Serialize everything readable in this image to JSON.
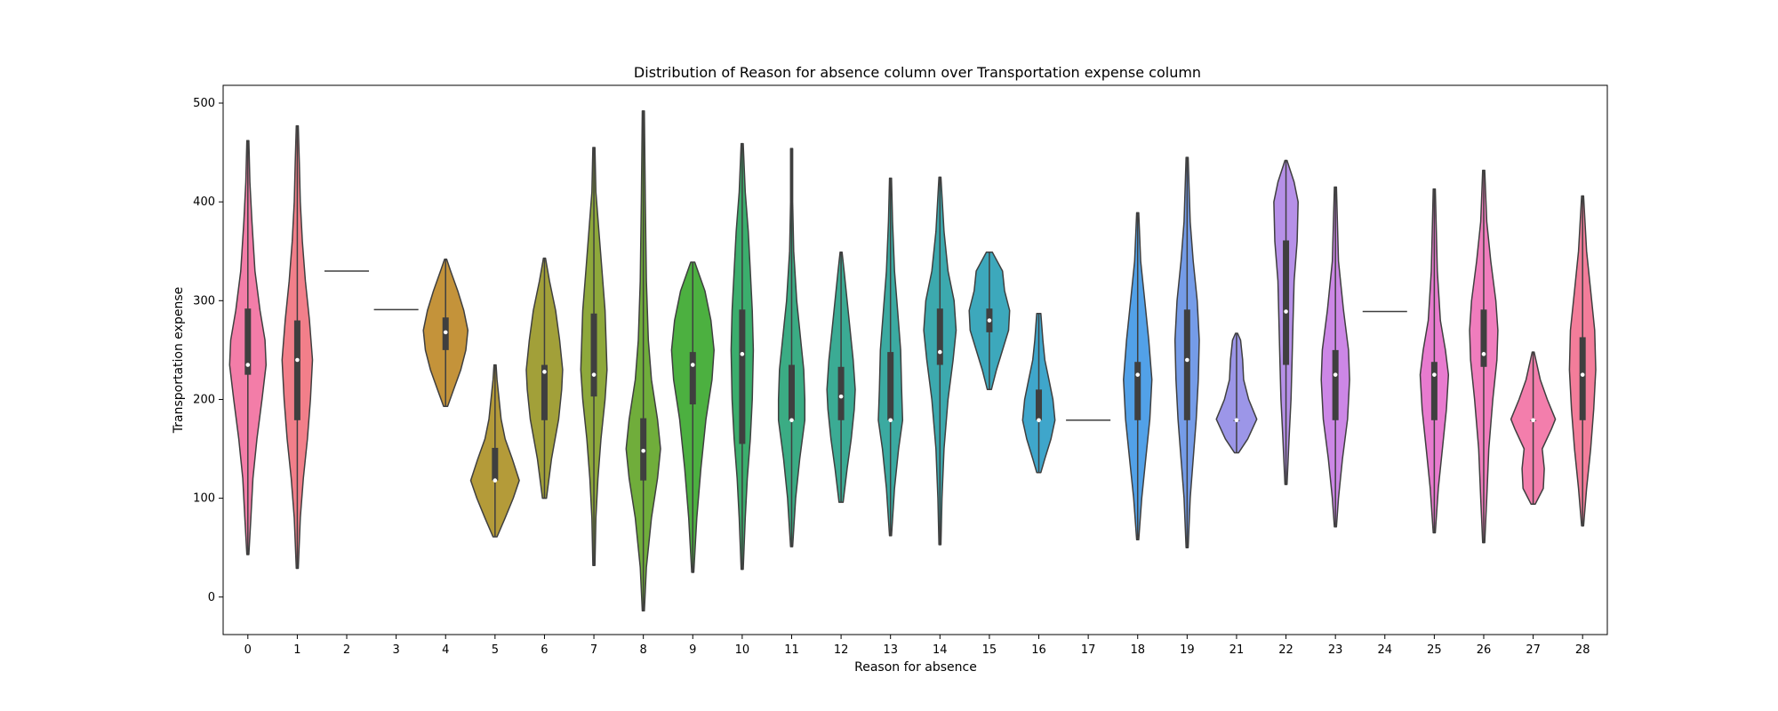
{
  "chart_data": {
    "type": "violin",
    "title": "Distribution of Reason for absence column over Transportation expense column",
    "xlabel": "Reason for absence",
    "ylabel": "Transportation expense",
    "ylim": [
      -38,
      518
    ],
    "yticks": [
      0,
      100,
      200,
      300,
      400,
      500
    ],
    "grid": false,
    "legend": "none",
    "categories": [
      "0",
      "1",
      "2",
      "3",
      "4",
      "5",
      "6",
      "7",
      "8",
      "9",
      "10",
      "11",
      "12",
      "13",
      "14",
      "15",
      "16",
      "17",
      "18",
      "19",
      "21",
      "22",
      "23",
      "24",
      "25",
      "26",
      "27",
      "28"
    ],
    "colors": [
      "#f37da8",
      "#f27f8a",
      "#e9805e",
      "#d88a3b",
      "#c4933a",
      "#b49b39",
      "#a2a039",
      "#8ea83b",
      "#70ad3b",
      "#4cb040",
      "#3bae6d",
      "#3bac84",
      "#3bab94",
      "#3baaa1",
      "#3ca9ae",
      "#3da8bc",
      "#3fa6cb",
      "#44a2db",
      "#52a1e8",
      "#759ce8",
      "#9c96e8",
      "#b690e8",
      "#cc87e6",
      "#de80e0",
      "#e87bcf",
      "#f07dbd",
      "#f37eac",
      "#f37d9a"
    ],
    "violins": [
      {
        "category": "0",
        "min": 43,
        "max": 462,
        "q1": 225,
        "median": 235,
        "q3": 292,
        "profile": [
          [
            43,
            1
          ],
          [
            80,
            3
          ],
          [
            120,
            5
          ],
          [
            160,
            9
          ],
          [
            200,
            14
          ],
          [
            235,
            18
          ],
          [
            260,
            17
          ],
          [
            290,
            12
          ],
          [
            330,
            7
          ],
          [
            380,
            4
          ],
          [
            420,
            2
          ],
          [
            462,
            1
          ]
        ]
      },
      {
        "category": "1",
        "min": 29,
        "max": 477,
        "q1": 179,
        "median": 240,
        "q3": 280,
        "profile": [
          [
            29,
            1
          ],
          [
            80,
            3
          ],
          [
            120,
            6
          ],
          [
            160,
            10
          ],
          [
            200,
            13
          ],
          [
            240,
            15
          ],
          [
            280,
            12
          ],
          [
            320,
            8
          ],
          [
            360,
            5
          ],
          [
            400,
            3
          ],
          [
            440,
            2
          ],
          [
            477,
            1
          ]
        ]
      },
      {
        "category": "2",
        "min": 330,
        "max": 330,
        "q1": 330,
        "median": 330,
        "q3": 330,
        "profile": [
          [
            330,
            40
          ]
        ]
      },
      {
        "category": "3",
        "min": 291,
        "max": 291,
        "q1": 291,
        "median": 291,
        "q3": 291,
        "profile": [
          [
            291,
            40
          ]
        ]
      },
      {
        "category": "4",
        "min": 193,
        "max": 342,
        "q1": 250,
        "median": 268,
        "q3": 283,
        "profile": [
          [
            193,
            2
          ],
          [
            210,
            8
          ],
          [
            230,
            15
          ],
          [
            250,
            20
          ],
          [
            270,
            22
          ],
          [
            290,
            18
          ],
          [
            310,
            12
          ],
          [
            330,
            5
          ],
          [
            342,
            1
          ]
        ]
      },
      {
        "category": "5",
        "min": 61,
        "max": 235,
        "q1": 118,
        "median": 118,
        "q3": 151,
        "profile": [
          [
            61,
            2
          ],
          [
            80,
            10
          ],
          [
            100,
            18
          ],
          [
            118,
            24
          ],
          [
            140,
            17
          ],
          [
            160,
            10
          ],
          [
            180,
            6
          ],
          [
            200,
            4
          ],
          [
            220,
            2
          ],
          [
            235,
            1
          ]
        ]
      },
      {
        "category": "6",
        "min": 100,
        "max": 343,
        "q1": 179,
        "median": 228,
        "q3": 235,
        "profile": [
          [
            100,
            2
          ],
          [
            140,
            7
          ],
          [
            180,
            14
          ],
          [
            210,
            17
          ],
          [
            230,
            18
          ],
          [
            260,
            15
          ],
          [
            290,
            11
          ],
          [
            320,
            5
          ],
          [
            343,
            1
          ]
        ]
      },
      {
        "category": "7",
        "min": 32,
        "max": 455,
        "q1": 203,
        "median": 225,
        "q3": 287,
        "profile": [
          [
            32,
            1
          ],
          [
            80,
            2
          ],
          [
            120,
            4
          ],
          [
            160,
            7
          ],
          [
            200,
            11
          ],
          [
            230,
            13
          ],
          [
            260,
            12
          ],
          [
            290,
            11
          ],
          [
            330,
            8
          ],
          [
            370,
            5
          ],
          [
            410,
            2
          ],
          [
            455,
            1
          ]
        ]
      },
      {
        "category": "8",
        "min": -14,
        "max": 492,
        "q1": 118,
        "median": 148,
        "q3": 181,
        "profile": [
          [
            -14,
            1
          ],
          [
            30,
            3
          ],
          [
            80,
            8
          ],
          [
            120,
            14
          ],
          [
            150,
            17
          ],
          [
            180,
            14
          ],
          [
            220,
            8
          ],
          [
            260,
            5
          ],
          [
            320,
            3
          ],
          [
            400,
            2
          ],
          [
            492,
            1
          ]
        ]
      },
      {
        "category": "9",
        "min": 25,
        "max": 339,
        "q1": 195,
        "median": 235,
        "q3": 248,
        "profile": [
          [
            25,
            1
          ],
          [
            80,
            4
          ],
          [
            130,
            8
          ],
          [
            180,
            13
          ],
          [
            220,
            19
          ],
          [
            250,
            21
          ],
          [
            280,
            18
          ],
          [
            310,
            12
          ],
          [
            339,
            2
          ]
        ]
      },
      {
        "category": "10",
        "min": 28,
        "max": 459,
        "q1": 155,
        "median": 246,
        "q3": 291,
        "profile": [
          [
            28,
            1
          ],
          [
            80,
            3
          ],
          [
            120,
            5
          ],
          [
            160,
            8
          ],
          [
            200,
            10
          ],
          [
            250,
            11
          ],
          [
            290,
            10
          ],
          [
            330,
            8
          ],
          [
            370,
            6
          ],
          [
            410,
            3
          ],
          [
            459,
            1
          ]
        ]
      },
      {
        "category": "11",
        "min": 51,
        "max": 454,
        "q1": 179,
        "median": 179,
        "q3": 235,
        "profile": [
          [
            51,
            1
          ],
          [
            100,
            4
          ],
          [
            140,
            8
          ],
          [
            179,
            13
          ],
          [
            200,
            13
          ],
          [
            230,
            12
          ],
          [
            260,
            9
          ],
          [
            300,
            5
          ],
          [
            350,
            2
          ],
          [
            400,
            1
          ],
          [
            454,
            1
          ]
        ]
      },
      {
        "category": "12",
        "min": 96,
        "max": 349,
        "q1": 179,
        "median": 203,
        "q3": 233,
        "profile": [
          [
            96,
            2
          ],
          [
            130,
            6
          ],
          [
            160,
            10
          ],
          [
            190,
            13
          ],
          [
            210,
            14
          ],
          [
            240,
            12
          ],
          [
            270,
            9
          ],
          [
            300,
            6
          ],
          [
            330,
            3
          ],
          [
            349,
            1
          ]
        ]
      },
      {
        "category": "13",
        "min": 62,
        "max": 424,
        "q1": 179,
        "median": 179,
        "q3": 248,
        "profile": [
          [
            62,
            1
          ],
          [
            110,
            4
          ],
          [
            150,
            8
          ],
          [
            179,
            12
          ],
          [
            210,
            11
          ],
          [
            250,
            10
          ],
          [
            290,
            7
          ],
          [
            330,
            4
          ],
          [
            380,
            2
          ],
          [
            424,
            1
          ]
        ]
      },
      {
        "category": "14",
        "min": 53,
        "max": 425,
        "q1": 235,
        "median": 248,
        "q3": 292,
        "profile": [
          [
            53,
            1
          ],
          [
            100,
            2
          ],
          [
            150,
            4
          ],
          [
            200,
            8
          ],
          [
            240,
            13
          ],
          [
            270,
            16
          ],
          [
            300,
            14
          ],
          [
            330,
            8
          ],
          [
            370,
            4
          ],
          [
            425,
            1
          ]
        ]
      },
      {
        "category": "15",
        "min": 210,
        "max": 349,
        "q1": 268,
        "median": 280,
        "q3": 292,
        "profile": [
          [
            210,
            2
          ],
          [
            230,
            7
          ],
          [
            250,
            13
          ],
          [
            270,
            19
          ],
          [
            290,
            20
          ],
          [
            310,
            15
          ],
          [
            330,
            13
          ],
          [
            349,
            3
          ]
        ]
      },
      {
        "category": "16",
        "min": 126,
        "max": 287,
        "q1": 179,
        "median": 179,
        "q3": 210,
        "profile": [
          [
            126,
            2
          ],
          [
            140,
            6
          ],
          [
            160,
            12
          ],
          [
            179,
            16
          ],
          [
            200,
            14
          ],
          [
            220,
            10
          ],
          [
            240,
            6
          ],
          [
            260,
            4
          ],
          [
            287,
            2
          ]
        ]
      },
      {
        "category": "17",
        "min": 179,
        "max": 179,
        "q1": 179,
        "median": 179,
        "q3": 179,
        "profile": [
          [
            179,
            40
          ]
        ]
      },
      {
        "category": "18",
        "min": 58,
        "max": 389,
        "q1": 179,
        "median": 225,
        "q3": 238,
        "profile": [
          [
            58,
            1
          ],
          [
            100,
            4
          ],
          [
            140,
            8
          ],
          [
            180,
            12
          ],
          [
            220,
            14
          ],
          [
            260,
            11
          ],
          [
            300,
            7
          ],
          [
            340,
            3
          ],
          [
            389,
            1
          ]
        ]
      },
      {
        "category": "19",
        "min": 50,
        "max": 445,
        "q1": 179,
        "median": 240,
        "q3": 291,
        "profile": [
          [
            50,
            1
          ],
          [
            100,
            3
          ],
          [
            140,
            6
          ],
          [
            180,
            9
          ],
          [
            220,
            11
          ],
          [
            260,
            12
          ],
          [
            300,
            10
          ],
          [
            340,
            6
          ],
          [
            380,
            3
          ],
          [
            445,
            1
          ]
        ]
      },
      {
        "category": "21",
        "min": 146,
        "max": 267,
        "q1": 179,
        "median": 179,
        "q3": 179,
        "profile": [
          [
            146,
            2
          ],
          [
            160,
            11
          ],
          [
            180,
            20
          ],
          [
            200,
            12
          ],
          [
            220,
            7
          ],
          [
            240,
            6
          ],
          [
            260,
            4
          ],
          [
            267,
            1
          ]
        ]
      },
      {
        "category": "22",
        "min": 114,
        "max": 442,
        "q1": 235,
        "median": 289,
        "q3": 361,
        "profile": [
          [
            114,
            1
          ],
          [
            160,
            3
          ],
          [
            200,
            5
          ],
          [
            240,
            6
          ],
          [
            280,
            7
          ],
          [
            320,
            8
          ],
          [
            360,
            11
          ],
          [
            400,
            12
          ],
          [
            420,
            8
          ],
          [
            442,
            1
          ]
        ]
      },
      {
        "category": "23",
        "min": 71,
        "max": 415,
        "q1": 179,
        "median": 225,
        "q3": 250,
        "profile": [
          [
            71,
            1
          ],
          [
            100,
            3
          ],
          [
            140,
            7
          ],
          [
            180,
            12
          ],
          [
            220,
            14
          ],
          [
            250,
            13
          ],
          [
            290,
            8
          ],
          [
            340,
            3
          ],
          [
            415,
            1
          ]
        ]
      },
      {
        "category": "24",
        "min": 289,
        "max": 289,
        "q1": 289,
        "median": 289,
        "q3": 289,
        "profile": [
          [
            289,
            40
          ]
        ]
      },
      {
        "category": "25",
        "min": 65,
        "max": 413,
        "q1": 179,
        "median": 225,
        "q3": 238,
        "profile": [
          [
            65,
            1
          ],
          [
            110,
            4
          ],
          [
            150,
            8
          ],
          [
            190,
            12
          ],
          [
            225,
            14
          ],
          [
            250,
            11
          ],
          [
            280,
            6
          ],
          [
            330,
            3
          ],
          [
            413,
            1
          ]
        ]
      },
      {
        "category": "26",
        "min": 55,
        "max": 432,
        "q1": 233,
        "median": 246,
        "q3": 291,
        "profile": [
          [
            55,
            1
          ],
          [
            100,
            3
          ],
          [
            150,
            5
          ],
          [
            200,
            9
          ],
          [
            240,
            13
          ],
          [
            270,
            14
          ],
          [
            300,
            12
          ],
          [
            340,
            7
          ],
          [
            380,
            3
          ],
          [
            432,
            1
          ]
        ]
      },
      {
        "category": "27",
        "min": 94,
        "max": 248,
        "q1": 179,
        "median": 179,
        "q3": 179,
        "profile": [
          [
            94,
            2
          ],
          [
            110,
            10
          ],
          [
            130,
            11
          ],
          [
            150,
            9
          ],
          [
            170,
            18
          ],
          [
            180,
            22
          ],
          [
            200,
            14
          ],
          [
            220,
            7
          ],
          [
            248,
            1
          ]
        ]
      },
      {
        "category": "28",
        "min": 72,
        "max": 406,
        "q1": 179,
        "median": 225,
        "q3": 263,
        "profile": [
          [
            72,
            1
          ],
          [
            110,
            4
          ],
          [
            150,
            8
          ],
          [
            190,
            11
          ],
          [
            230,
            13
          ],
          [
            270,
            12
          ],
          [
            310,
            8
          ],
          [
            350,
            4
          ],
          [
            406,
            1
          ]
        ]
      }
    ]
  }
}
